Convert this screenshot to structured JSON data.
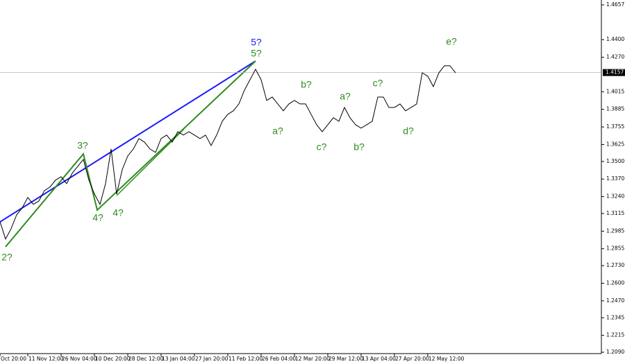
{
  "chart_data": {
    "type": "line",
    "categories": [
      "Oct 20:00",
      null,
      null,
      null,
      null,
      "11 Nov 12:00",
      null,
      null,
      null,
      null,
      null,
      "26 Nov 04:00",
      null,
      null,
      null,
      null,
      null,
      "10 Dec 20:00",
      null,
      null,
      null,
      null,
      null,
      "28 Dec 12:00",
      null,
      null,
      null,
      null,
      null,
      "13 Jan 04:00",
      null,
      null,
      null,
      null,
      null,
      "27 Jan 20:00",
      null,
      null,
      null,
      null,
      null,
      "11 Feb 12:00",
      null,
      null,
      null,
      null,
      null,
      "26 Feb 04:00",
      null,
      null,
      null,
      null,
      null,
      "12 Mar 20:00",
      null,
      null,
      null,
      null,
      null,
      "29 Mar 12:00",
      null,
      null,
      null,
      null,
      null,
      "13 Apr 04:00",
      null,
      null,
      null,
      null,
      null,
      "27 Apr 20:00",
      null,
      null,
      null,
      null,
      null,
      "12 May 12:00",
      null,
      null,
      null,
      null,
      null
    ],
    "series": [
      {
        "color": "#000000",
        "values": [
          1.3055,
          1.2927,
          1.3003,
          1.3106,
          1.3157,
          1.3234,
          1.3183,
          1.3208,
          1.3285,
          1.3311,
          1.3362,
          1.3387,
          1.3336,
          1.3413,
          1.3464,
          1.3515,
          1.3362,
          1.3259,
          1.3183,
          1.3336,
          1.3592,
          1.3259,
          1.3439,
          1.3541,
          1.3592,
          1.3669,
          1.3643,
          1.3592,
          1.3567,
          1.3669,
          1.3695,
          1.3643,
          1.372,
          1.3695,
          1.372,
          1.3695,
          1.3669,
          1.3695,
          1.3618,
          1.3695,
          1.3797,
          1.3848,
          1.3874,
          1.3925,
          1.4027,
          1.4104,
          1.4181,
          1.4104,
          1.3951,
          1.3976,
          1.3925,
          1.3874,
          1.3925,
          1.3951,
          1.3925,
          1.3925,
          1.3848,
          1.3771,
          1.372,
          1.3771,
          1.3823,
          1.3797,
          1.3899,
          1.3823,
          1.3771,
          1.3746,
          1.3771,
          1.3797,
          1.3976,
          1.3976,
          1.3899,
          1.3899,
          1.3925,
          1.3874,
          1.3899,
          1.3925,
          1.4155,
          1.413,
          1.4053,
          1.4155,
          1.4207,
          1.4207,
          1.4155
        ]
      }
    ],
    "ylim": [
      1.208,
      1.4693
    ],
    "yticks": [
      1.4657,
      {
        "value": 1.44,
        "label": "1.4400"
      },
      {
        "value": 1.427,
        "label": "1.4270"
      },
      1.4015,
      1.3885,
      1.3755,
      1.3625,
      {
        "value": 1.35,
        "label": "1.3500"
      },
      {
        "value": 1.337,
        "label": "1.3370"
      },
      {
        "value": 1.324,
        "label": "1.3240"
      },
      1.3115,
      1.2985,
      1.2855,
      {
        "value": 1.273,
        "label": "1.2730"
      },
      {
        "value": 1.26,
        "label": "1.2600"
      },
      {
        "value": 1.247,
        "label": "1.2470"
      },
      1.2345,
      1.2215,
      {
        "value": 1.209,
        "label": "1.2090"
      }
    ],
    "price_line": 1.4157,
    "annotations": [
      {
        "text": "5?",
        "color": "#1a1aff"
      },
      {
        "text": "5?",
        "color": "#2e8b1e"
      },
      {
        "text": "2?",
        "color": "#2e8b1e"
      },
      {
        "text": "3?",
        "color": "#2e8b1e"
      },
      {
        "text": "4?",
        "color": "#2e8b1e"
      },
      {
        "text": "4?",
        "color": "#2e8b1e"
      },
      {
        "text": "a?",
        "color": "#2e8b1e"
      },
      {
        "text": "b?",
        "color": "#2e8b1e"
      },
      {
        "text": "c?",
        "color": "#2e8b1e"
      },
      {
        "text": "a?",
        "color": "#2e8b1e"
      },
      {
        "text": "b?",
        "color": "#2e8b1e"
      },
      {
        "text": "c?",
        "color": "#2e8b1e"
      },
      {
        "text": "d?",
        "color": "#2e8b1e"
      },
      {
        "text": "e?",
        "color": "#2e8b1e"
      }
    ]
  }
}
